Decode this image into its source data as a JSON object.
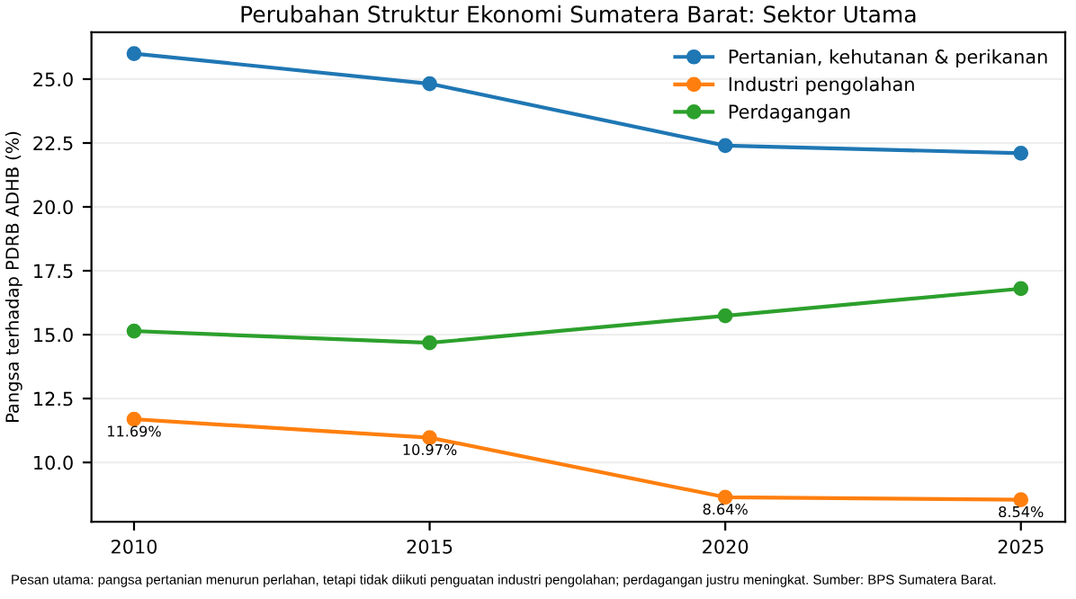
{
  "chart_data": {
    "type": "line",
    "title": "Perubahan Struktur Ekonomi Sumatera Barat: Sektor Utama",
    "ylabel": "Pangsa terhadap PDRB ADHB (%)",
    "x": [
      2010,
      2015,
      2020,
      2025
    ],
    "series": [
      {
        "name": "Pertanian, kehutanan & perikanan",
        "color": "#1f77b4",
        "values": [
          26.0,
          24.82,
          22.4,
          22.1
        ]
      },
      {
        "name": "Industri pengolahan",
        "color": "#ff7f0e",
        "values": [
          11.69,
          10.97,
          8.64,
          8.54
        ],
        "value_labels": [
          "11.69%",
          "10.97%",
          "8.64%",
          "8.54%"
        ]
      },
      {
        "name": "Perdagangan",
        "color": "#2ca02c",
        "values": [
          15.14,
          14.68,
          15.74,
          16.8
        ]
      }
    ],
    "xlim": [
      2009.28,
      2025.75
    ],
    "ylim": [
      7.68,
      26.83
    ],
    "xticks": [
      2010,
      2015,
      2020,
      2025
    ],
    "yticks": [
      {
        "value": 10,
        "label": "10.0"
      },
      {
        "value": 12.5,
        "label": "12.5"
      },
      {
        "value": 15,
        "label": "15.0"
      },
      {
        "value": 17.5,
        "label": "17.5"
      },
      {
        "value": 20,
        "label": "20.0"
      },
      {
        "value": 22.5,
        "label": "22.5"
      },
      {
        "value": 25,
        "label": "25.0"
      }
    ],
    "grid": "y",
    "legend": "top right",
    "marker": "circle",
    "line_style": "solid",
    "annotations": [
      "Pesan utama: pangsa pertanian menurun perlahan, tetapi tidak diikuti penguatan industri pengolahan; perdagangan justru meningkat. Sumber: BPS Sumatera Barat."
    ]
  }
}
